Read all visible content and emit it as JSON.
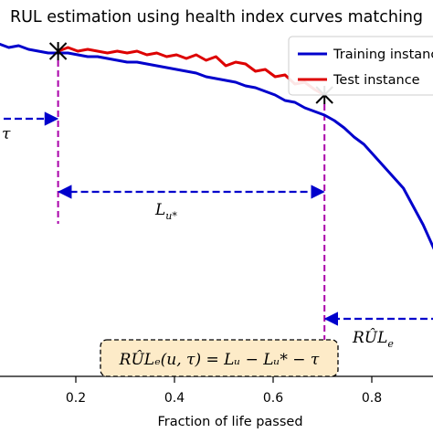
{
  "chart_data": {
    "type": "line",
    "title": "RUL estimation using health index curves matching",
    "xlabel": "Fraction of life passed",
    "ylabel": "",
    "xlim": [
      0.0,
      1.0
    ],
    "ylim": [
      0.0,
      1.0
    ],
    "xticks": [
      "0.2",
      "0.4",
      "0.6",
      "0.8"
    ],
    "legend_position": "top-right",
    "grid": false,
    "series": [
      {
        "name": "Training instance",
        "color": "#0000cc",
        "x": [
          0.0,
          0.02,
          0.04,
          0.06,
          0.08,
          0.1,
          0.12,
          0.14,
          0.16,
          0.18,
          0.2,
          0.22,
          0.24,
          0.26,
          0.28,
          0.3,
          0.32,
          0.34,
          0.36,
          0.38,
          0.4,
          0.42,
          0.44,
          0.46,
          0.48,
          0.5,
          0.52,
          0.54,
          0.56,
          0.58,
          0.6,
          0.62,
          0.64,
          0.66,
          0.68,
          0.7,
          0.72,
          0.74,
          0.76,
          0.78,
          0.8,
          0.82,
          0.84,
          0.86,
          0.88,
          0.9,
          0.92,
          0.94,
          0.96,
          0.98,
          1.0
        ],
        "y": [
          0.95,
          0.955,
          0.945,
          0.95,
          0.94,
          0.935,
          0.93,
          0.93,
          0.93,
          0.925,
          0.92,
          0.92,
          0.915,
          0.91,
          0.905,
          0.905,
          0.9,
          0.895,
          0.89,
          0.885,
          0.88,
          0.875,
          0.865,
          0.86,
          0.855,
          0.85,
          0.84,
          0.835,
          0.825,
          0.815,
          0.8,
          0.795,
          0.78,
          0.77,
          0.76,
          0.745,
          0.725,
          0.7,
          0.68,
          0.65,
          0.62,
          0.59,
          0.56,
          0.51,
          0.46,
          0.4,
          0.34,
          0.28,
          0.23,
          0.18,
          0.14
        ]
      },
      {
        "name": "Test instance",
        "color": "#dd0000",
        "x": [
          0.14,
          0.16,
          0.18,
          0.2,
          0.22,
          0.24,
          0.26,
          0.28,
          0.3,
          0.32,
          0.34,
          0.36,
          0.38,
          0.4,
          0.42,
          0.44,
          0.46,
          0.48,
          0.5,
          0.52,
          0.54,
          0.56,
          0.58,
          0.6,
          0.62,
          0.64,
          0.66,
          0.68
        ],
        "y": [
          0.935,
          0.945,
          0.935,
          0.94,
          0.935,
          0.93,
          0.935,
          0.93,
          0.935,
          0.925,
          0.93,
          0.92,
          0.925,
          0.915,
          0.925,
          0.91,
          0.92,
          0.895,
          0.905,
          0.9,
          0.88,
          0.885,
          0.865,
          0.87,
          0.845,
          0.85,
          0.83,
          0.815
        ]
      }
    ],
    "markers": [
      {
        "x": 0.14,
        "y": 0.935,
        "symbol": "x"
      },
      {
        "x": 0.68,
        "y": 0.815,
        "symbol": "x"
      }
    ],
    "annotations": {
      "tau_label": "τ",
      "lu_star_label": "L",
      "lu_star_sub": "u*",
      "rul_label": "RÛL",
      "rul_sub": "e",
      "formula": "RÛLₑ(u, τ) = Lᵤ − Lᵤ* − τ",
      "formula_box_fill": "#fdebc8",
      "guide_color": "#aa00aa",
      "arrow_color": "#0000cc",
      "tau_x": [
        0.0,
        0.14
      ],
      "lu_star_x": [
        0.14,
        0.68
      ],
      "rul_x": [
        0.68,
        1.0
      ]
    }
  }
}
